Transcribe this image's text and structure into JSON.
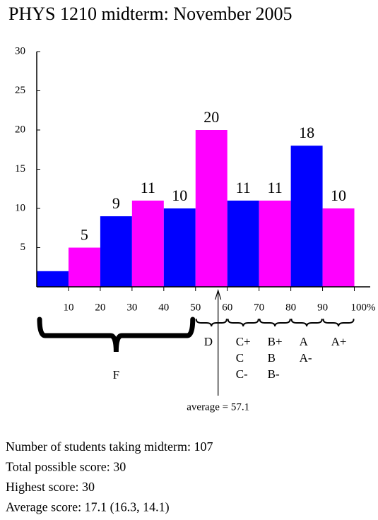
{
  "chart_data": {
    "type": "histogram",
    "title": "PHYS 1210 midterm: November 2005",
    "bins": [
      0,
      10,
      20,
      30,
      40,
      50,
      60,
      70,
      80,
      90,
      100
    ],
    "values": [
      2,
      5,
      9,
      11,
      10,
      20,
      11,
      11,
      18,
      10
    ],
    "value_labels": [
      null,
      "5",
      "9",
      "11",
      "10",
      "20",
      "11",
      "11",
      "18",
      "10"
    ],
    "colors": [
      "#0000ff",
      "#ff00ff",
      "#0000ff",
      "#ff00ff",
      "#0000ff",
      "#ff00ff",
      "#0000ff",
      "#ff00ff",
      "#0000ff",
      "#ff00ff"
    ],
    "xlim": [
      0,
      105
    ],
    "ylim": [
      0,
      30
    ],
    "xticks": [
      10,
      20,
      30,
      40,
      50,
      60,
      70,
      80,
      90,
      {
        "value": 100,
        "label": "100%"
      }
    ],
    "yticks": [
      5,
      10,
      15,
      20,
      25,
      30
    ],
    "grade_ranges": [
      {
        "from": 0,
        "to": 50,
        "grades": [
          "F"
        ]
      },
      {
        "from": 50,
        "to": 60,
        "grades": [
          "D"
        ]
      },
      {
        "from": 60,
        "to": 70,
        "grades": [
          "C+",
          "C",
          "C-"
        ]
      },
      {
        "from": 70,
        "to": 80,
        "grades": [
          "B+",
          "B",
          "B-"
        ]
      },
      {
        "from": 80,
        "to": 90,
        "grades": [
          "A",
          "A-"
        ]
      },
      {
        "from": 90,
        "to": 100,
        "grades": [
          "A+"
        ]
      }
    ],
    "average": {
      "value": 57.1,
      "label": "average = 57.1"
    },
    "notes": [
      "Number of students taking midterm: 107",
      "Total possible score: 30",
      "Highest score: 30",
      "Average score: 17.1 (16.3, 14.1)"
    ]
  }
}
